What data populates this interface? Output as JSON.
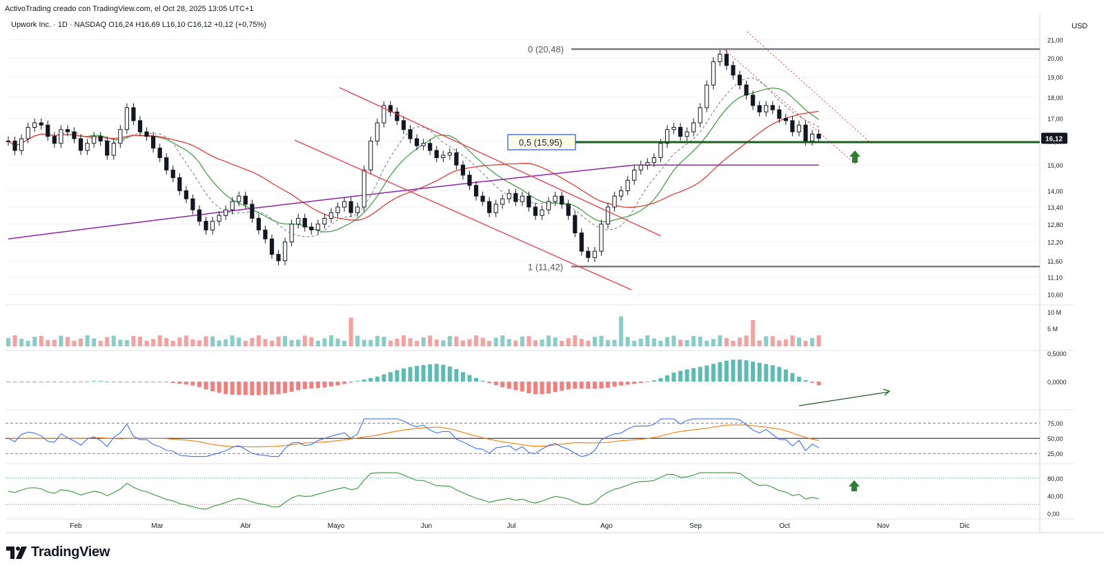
{
  "header": {
    "credit": "ActivoTrading creado con TradingView.com, el Oct 28, 2025 13:05 UTC+1",
    "symbol_line": "Upwork Inc. · 1D · NASDAQ  O16,24  H16,69  L16,10  C16,12  +0,12 (+0,75%)",
    "currency": "USD"
  },
  "brand": {
    "logo_text": "TradingView"
  },
  "colors": {
    "up": "#131722",
    "down": "#131722",
    "sma_fast": "#43a047",
    "sma_mid": "#e53935",
    "sma_slow": "#8e24aa",
    "dashed_ma": "#787b86",
    "fib_line": "#787b86",
    "support": "#1b5e20",
    "channel": "#f23645",
    "vol_up": "#26a69a",
    "vol_down": "#ef5350",
    "osc_orange": "#f57c00",
    "osc_blue": "#2962ff"
  },
  "chart_data": [
    {
      "type": "candlestick",
      "name": "Upwork Inc.",
      "scale": "log",
      "ylim": [
        10.3,
        21.3
      ],
      "y_ticks": [
        10.6,
        11.1,
        11.6,
        12.2,
        12.8,
        13.4,
        14.0,
        15.0,
        16.0,
        17.0,
        18.0,
        19.0,
        20.0,
        21.0
      ],
      "y_tick_labels": [
        "10,60",
        "11,10",
        "11,60",
        "12,20",
        "12,80",
        "13,40",
        "14,00",
        "15,00",
        "16,00",
        "17,00",
        "18,00",
        "19,00",
        "20,00",
        "21,00"
      ],
      "x_labels": [
        "Feb",
        "Mar",
        "Abr",
        "Mayo",
        "Jun",
        "Jul",
        "Ago",
        "Sep",
        "Oct",
        "Nov",
        "Dic"
      ],
      "last_price": 16.12,
      "last_price_label": "16,12",
      "fib_levels": [
        {
          "label": "0 (20,48)",
          "value": 20.48
        },
        {
          "label": "0,5 (15,95)",
          "value": 15.95
        },
        {
          "label": "1 (11,42)",
          "value": 11.42
        }
      ],
      "closes": [
        16.0,
        15.6,
        16.1,
        16.6,
        16.8,
        16.7,
        16.2,
        15.9,
        16.5,
        16.4,
        16.1,
        15.6,
        15.9,
        16.2,
        16.0,
        15.4,
        15.9,
        16.5,
        17.5,
        16.9,
        16.4,
        16.2,
        15.7,
        15.3,
        14.8,
        14.5,
        14.0,
        13.7,
        13.3,
        12.9,
        12.6,
        12.9,
        13.1,
        13.3,
        13.6,
        13.8,
        13.5,
        13.0,
        12.6,
        12.3,
        11.8,
        11.6,
        12.2,
        12.8,
        13.0,
        12.7,
        12.6,
        12.8,
        13.0,
        13.2,
        13.4,
        13.6,
        13.2,
        13.4,
        14.8,
        16.0,
        16.8,
        17.6,
        17.3,
        16.9,
        16.5,
        16.1,
        15.8,
        15.9,
        15.6,
        15.3,
        15.4,
        15.5,
        15.0,
        14.6,
        14.2,
        13.8,
        13.6,
        13.2,
        13.5,
        13.7,
        13.9,
        13.6,
        13.8,
        13.4,
        13.1,
        13.3,
        13.6,
        13.8,
        13.5,
        13.1,
        12.5,
        11.9,
        11.7,
        11.9,
        12.8,
        13.4,
        13.8,
        14.0,
        14.4,
        14.8,
        15.0,
        15.1,
        15.3,
        15.9,
        16.5,
        16.6,
        16.2,
        16.4,
        16.8,
        17.5,
        18.6,
        19.8,
        20.2,
        19.6,
        19.1,
        18.6,
        18.1,
        17.6,
        17.3,
        17.6,
        17.4,
        17.0,
        16.9,
        16.4,
        16.7,
        16.0,
        16.3,
        16.12
      ],
      "overlays": [
        {
          "name": "SMA fast",
          "color": "#43a047"
        },
        {
          "name": "SMA mid",
          "color": "#e53935"
        },
        {
          "name": "SMA slow",
          "color": "#8e24aa"
        }
      ]
    },
    {
      "type": "bar",
      "name": "Volume",
      "y_tick_labels": [
        "10 M",
        "5 M"
      ]
    },
    {
      "type": "histogram",
      "name": "MACD histogram",
      "y_tick_labels": [
        "0,5000",
        "0,0000"
      ]
    },
    {
      "type": "line",
      "name": "RSI",
      "y_tick_labels": [
        "75,00",
        "50,00",
        "25,00"
      ]
    },
    {
      "type": "area",
      "name": "Stochastic",
      "y_tick_labels": [
        "80,00",
        "40,00",
        "0,00"
      ]
    }
  ]
}
